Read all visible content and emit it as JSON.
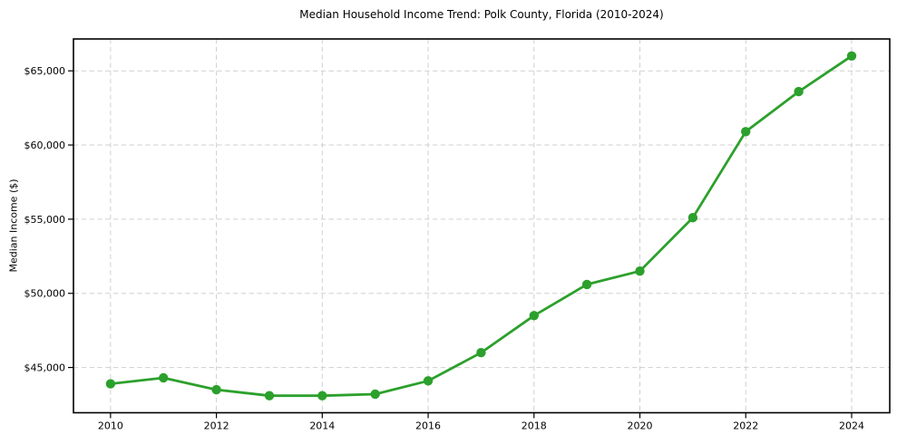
{
  "chart": {
    "title": "Median Household Income Trend: Polk County, Florida (2010-2024)",
    "y_axis_label": "Median Income ($)"
  },
  "chart_data": {
    "type": "line",
    "title": "Median Household Income Trend: Polk County, Florida (2010-2024)",
    "xlabel": "",
    "ylabel": "Median Income ($)",
    "x": [
      2010,
      2011,
      2012,
      2013,
      2014,
      2015,
      2016,
      2017,
      2018,
      2019,
      2020,
      2021,
      2022,
      2023,
      2024
    ],
    "values": [
      43900,
      44300,
      43500,
      43100,
      43100,
      43200,
      44100,
      46000,
      48500,
      50600,
      51500,
      55100,
      60900,
      63600,
      66000
    ],
    "series_name": "Median Household Income",
    "x_ticks": {
      "values": [
        2010,
        2012,
        2014,
        2016,
        2018,
        2020,
        2022,
        2024
      ],
      "labels": [
        "2010",
        "2012",
        "2014",
        "2016",
        "2018",
        "2020",
        "2022",
        "2024"
      ]
    },
    "y_ticks": {
      "values": [
        45000,
        50000,
        55000,
        60000,
        65000
      ],
      "labels": [
        "$45,000",
        "$50,000",
        "$55,000",
        "$60,000",
        "$65,000"
      ]
    },
    "xlim": [
      2009.3,
      2024.72
    ],
    "ylim": [
      41950,
      67150
    ],
    "grid": true,
    "grid_style": "dashed",
    "legend": "none",
    "line_color": "#2ca02c",
    "marker": "circle"
  }
}
